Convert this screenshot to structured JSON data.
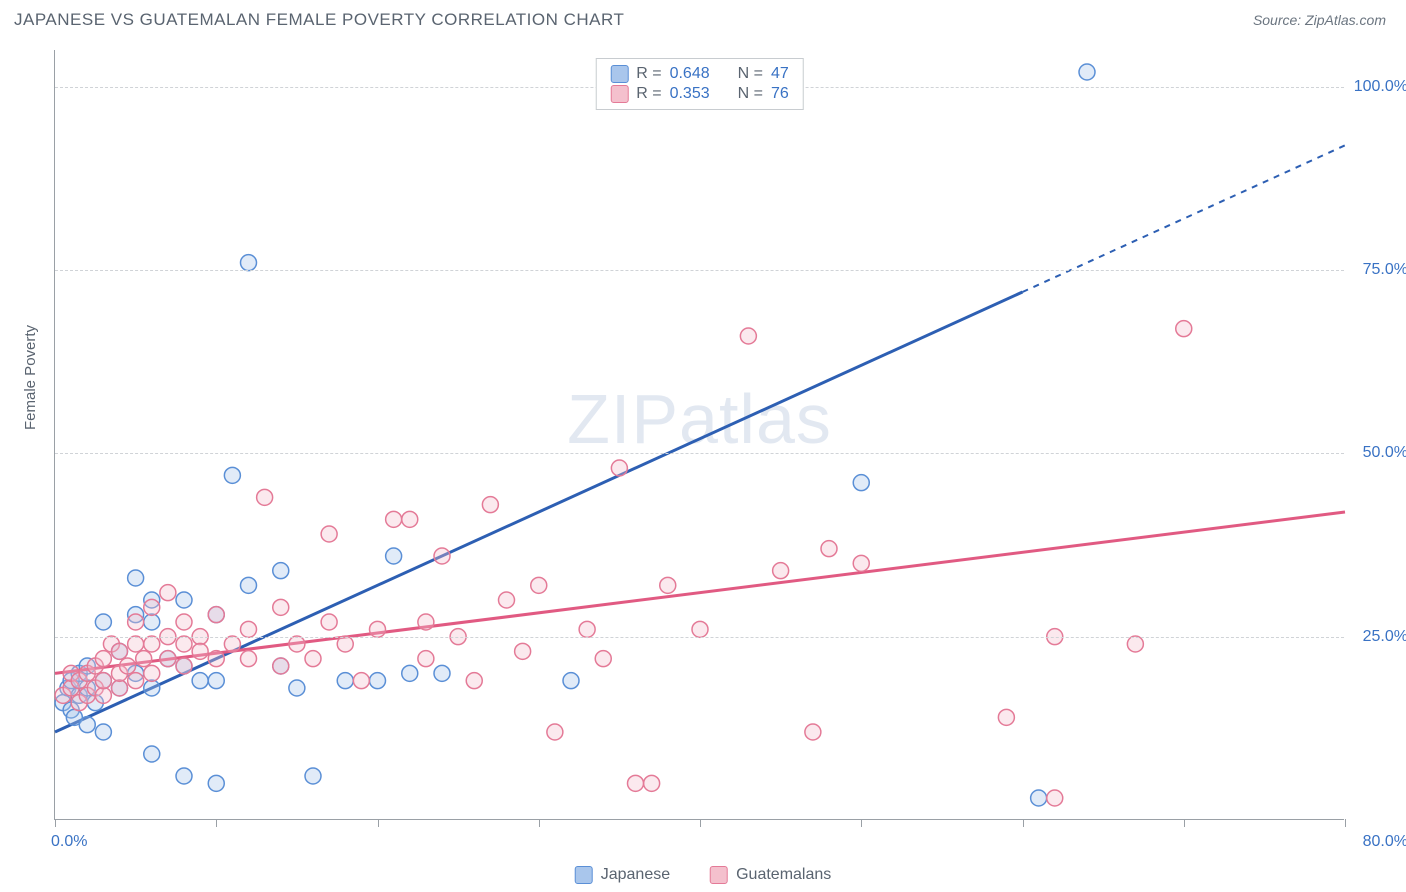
{
  "title": "JAPANESE VS GUATEMALAN FEMALE POVERTY CORRELATION CHART",
  "source_label": "Source: ZipAtlas.com",
  "watermark": "ZIPatlas",
  "ylabel": "Female Poverty",
  "chart": {
    "type": "scatter",
    "xlim": [
      0,
      80
    ],
    "ylim": [
      0,
      105
    ],
    "x_ticks": [
      0,
      10,
      20,
      30,
      40,
      50,
      60,
      70,
      80
    ],
    "x_min_label": "0.0%",
    "x_max_label": "80.0%",
    "y_gridlines": [
      25,
      50,
      75,
      100
    ],
    "y_labels": [
      "25.0%",
      "50.0%",
      "75.0%",
      "100.0%"
    ],
    "background_color": "#ffffff",
    "grid_color": "#d0d3d7",
    "axis_color": "#9aa0a6",
    "series": [
      {
        "name": "Japanese",
        "color_fill": "#a9c6ec",
        "color_stroke": "#5a8fd6",
        "line_color": "#2d5fb3",
        "marker_radius": 8,
        "R": "0.648",
        "N": "47",
        "trend": {
          "x1": 0,
          "y1": 12,
          "x2": 60,
          "y2": 72,
          "dash_from_x": 60,
          "dash_to_x": 80,
          "dash_to_y": 92
        },
        "points": [
          [
            0.5,
            16
          ],
          [
            0.8,
            18
          ],
          [
            1,
            15
          ],
          [
            1,
            19
          ],
          [
            1.2,
            14
          ],
          [
            1.5,
            17
          ],
          [
            1.5,
            20
          ],
          [
            2,
            13
          ],
          [
            2,
            18
          ],
          [
            2,
            21
          ],
          [
            2.5,
            16
          ],
          [
            3,
            12
          ],
          [
            3,
            19
          ],
          [
            3,
            27
          ],
          [
            4,
            18
          ],
          [
            4,
            23
          ],
          [
            5,
            20
          ],
          [
            5,
            28
          ],
          [
            5,
            33
          ],
          [
            6,
            9
          ],
          [
            6,
            18
          ],
          [
            6,
            27
          ],
          [
            6,
            30
          ],
          [
            7,
            22
          ],
          [
            8,
            6
          ],
          [
            8,
            21
          ],
          [
            8,
            30
          ],
          [
            9,
            19
          ],
          [
            10,
            5
          ],
          [
            10,
            19
          ],
          [
            10,
            28
          ],
          [
            11,
            47
          ],
          [
            12,
            32
          ],
          [
            12,
            76
          ],
          [
            14,
            21
          ],
          [
            14,
            34
          ],
          [
            15,
            18
          ],
          [
            16,
            6
          ],
          [
            18,
            19
          ],
          [
            20,
            19
          ],
          [
            21,
            36
          ],
          [
            22,
            20
          ],
          [
            24,
            20
          ],
          [
            32,
            19
          ],
          [
            50,
            46
          ],
          [
            61,
            3
          ],
          [
            64,
            102
          ]
        ]
      },
      {
        "name": "Guatemalans",
        "color_fill": "#f4c0cd",
        "color_stroke": "#e47a97",
        "line_color": "#e15a82",
        "marker_radius": 8,
        "R": "0.353",
        "N": "76",
        "trend": {
          "x1": 0,
          "y1": 20,
          "x2": 80,
          "y2": 42
        },
        "points": [
          [
            0.5,
            17
          ],
          [
            1,
            18
          ],
          [
            1,
            20
          ],
          [
            1.5,
            16
          ],
          [
            1.5,
            19
          ],
          [
            2,
            17
          ],
          [
            2,
            20
          ],
          [
            2.5,
            18
          ],
          [
            2.5,
            21
          ],
          [
            3,
            17
          ],
          [
            3,
            19
          ],
          [
            3,
            22
          ],
          [
            3.5,
            24
          ],
          [
            4,
            18
          ],
          [
            4,
            20
          ],
          [
            4,
            23
          ],
          [
            4.5,
            21
          ],
          [
            5,
            19
          ],
          [
            5,
            24
          ],
          [
            5,
            27
          ],
          [
            5.5,
            22
          ],
          [
            6,
            20
          ],
          [
            6,
            24
          ],
          [
            6,
            29
          ],
          [
            7,
            22
          ],
          [
            7,
            25
          ],
          [
            7,
            31
          ],
          [
            8,
            21
          ],
          [
            8,
            24
          ],
          [
            8,
            27
          ],
          [
            9,
            25
          ],
          [
            9,
            23
          ],
          [
            10,
            22
          ],
          [
            10,
            28
          ],
          [
            11,
            24
          ],
          [
            12,
            22
          ],
          [
            12,
            26
          ],
          [
            13,
            44
          ],
          [
            14,
            21
          ],
          [
            14,
            29
          ],
          [
            15,
            24
          ],
          [
            16,
            22
          ],
          [
            17,
            27
          ],
          [
            17,
            39
          ],
          [
            18,
            24
          ],
          [
            19,
            19
          ],
          [
            20,
            26
          ],
          [
            21,
            41
          ],
          [
            22,
            41
          ],
          [
            23,
            22
          ],
          [
            23,
            27
          ],
          [
            24,
            36
          ],
          [
            25,
            25
          ],
          [
            26,
            19
          ],
          [
            27,
            43
          ],
          [
            28,
            30
          ],
          [
            29,
            23
          ],
          [
            30,
            32
          ],
          [
            31,
            12
          ],
          [
            33,
            26
          ],
          [
            34,
            22
          ],
          [
            35,
            48
          ],
          [
            36,
            5
          ],
          [
            37,
            5
          ],
          [
            38,
            32
          ],
          [
            40,
            26
          ],
          [
            43,
            66
          ],
          [
            45,
            34
          ],
          [
            47,
            12
          ],
          [
            48,
            37
          ],
          [
            50,
            35
          ],
          [
            59,
            14
          ],
          [
            62,
            25
          ],
          [
            67,
            24
          ],
          [
            70,
            67
          ],
          [
            62,
            3
          ]
        ]
      }
    ],
    "legend_bottom": [
      {
        "label": "Japanese",
        "fill": "#a9c6ec",
        "stroke": "#5a8fd6"
      },
      {
        "label": "Guatemalans",
        "fill": "#f4c0cd",
        "stroke": "#e47a97"
      }
    ]
  }
}
